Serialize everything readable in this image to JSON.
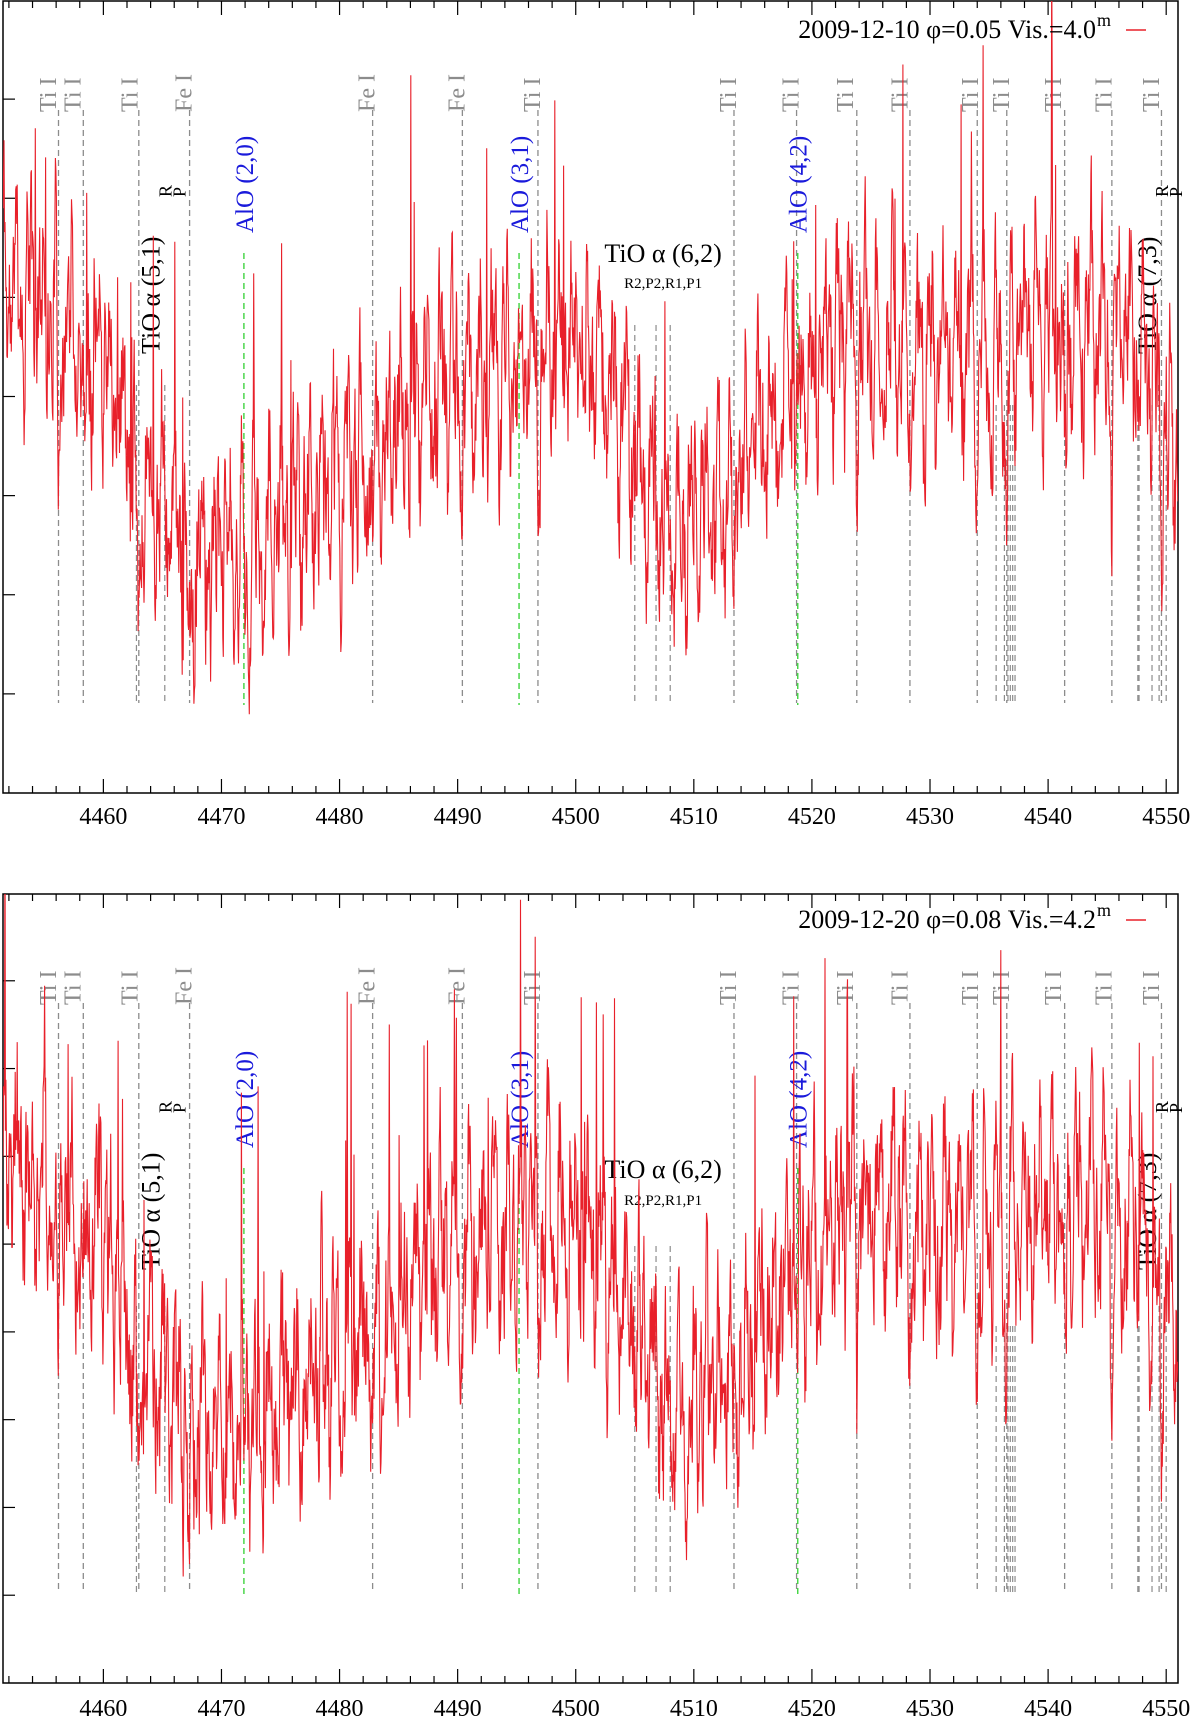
{
  "chart_data": [
    {
      "type": "line",
      "title": "",
      "xlabel": "",
      "ylabel": "",
      "xlim": [
        4451.5,
        4551
      ],
      "xticks": [
        4460,
        4470,
        4480,
        4490,
        4500,
        4510,
        4520,
        4530,
        4540,
        4550
      ],
      "xtick_labels": [
        "4460",
        "4470",
        "4480",
        "4490",
        "4500",
        "4510",
        "4520",
        "4530",
        "4540",
        "4550"
      ],
      "ylim": [
        0,
        8
      ],
      "y_tick_count": 7,
      "y_tick_labels": [],
      "grid": false,
      "legend": {
        "position": "top-right",
        "label": "2009-12-10 φ=0.05 Vis.=4.0",
        "sup": "m"
      },
      "series": [
        {
          "name": "2009-12-10 φ=0.05 Vis.=4.0m",
          "color": "#e8202a",
          "seed": 11,
          "amplitude_scale": 1.0,
          "continuum_x": [
            4451.5,
            4456,
            4460,
            4463,
            4467,
            4472,
            4476,
            4482,
            4488,
            4494,
            4498,
            4502,
            4505,
            4508,
            4511,
            4515,
            4519,
            4524,
            4530,
            4536,
            4542,
            4547,
            4551
          ],
          "continuum_y": [
            5.2,
            4.9,
            4.4,
            3.2,
            2.5,
            2.35,
            2.75,
            3.4,
            4.1,
            4.3,
            4.6,
            4.3,
            3.5,
            2.6,
            2.9,
            3.4,
            4.2,
            4.7,
            4.4,
            4.5,
            4.8,
            4.6,
            3.3
          ]
        }
      ]
    },
    {
      "type": "line",
      "title": "",
      "xlabel": "",
      "ylabel": "",
      "xlim": [
        4451.5,
        4551
      ],
      "xticks": [
        4460,
        4470,
        4480,
        4490,
        4500,
        4510,
        4520,
        4530,
        4540,
        4550
      ],
      "xtick_labels": [
        "4460",
        "4470",
        "4480",
        "4490",
        "4500",
        "4510",
        "4520",
        "4530",
        "4540",
        "4550"
      ],
      "ylim": [
        0,
        8
      ],
      "y_tick_count": 8,
      "y_tick_labels": [],
      "grid": false,
      "legend": {
        "position": "top-right",
        "label": "2009-12-20 φ=0.08 Vis.=4.2",
        "sup": "m"
      },
      "series": [
        {
          "name": "2009-12-20 φ=0.08 Vis.=4.2m",
          "color": "#e8202a",
          "seed": 23,
          "amplitude_scale": 1.05,
          "continuum_x": [
            4451.5,
            4456,
            4460,
            4463,
            4467,
            4472,
            4476,
            4482,
            4488,
            4494,
            4498,
            4502,
            4505,
            4508,
            4511,
            4515,
            4519,
            4524,
            4530,
            4536,
            4542,
            4547,
            4551
          ],
          "continuum_y": [
            5.3,
            5.0,
            4.5,
            3.3,
            2.6,
            2.5,
            2.9,
            3.6,
            4.3,
            4.6,
            4.8,
            4.4,
            3.6,
            2.7,
            3.0,
            3.5,
            4.3,
            4.9,
            4.6,
            4.6,
            4.9,
            4.7,
            3.4
          ]
        }
      ]
    }
  ],
  "identifications": {
    "atomic_lines": [
      {
        "label": "Ti I",
        "x": 4455.3,
        "drop_x": 4456.2
      },
      {
        "label": "Ti I",
        "x": 4457.4,
        "drop_x": 4458.3
      },
      {
        "label": "Ti I",
        "x": 4462.2,
        "drop_x": 4463.0
      },
      {
        "label": "Fe I",
        "x": 4466.8,
        "drop_x": 4467.3
      },
      {
        "label": "Fe I",
        "x": 4482.3,
        "drop_x": 4482.8
      },
      {
        "label": "Fe I",
        "x": 4489.9,
        "drop_x": 4490.4
      },
      {
        "label": "Ti I",
        "x": 4496.3,
        "drop_x": 4496.8
      },
      {
        "label": "Ti I",
        "x": 4512.9,
        "drop_x": 4513.4
      },
      {
        "label": "Ti I",
        "x": 4518.2,
        "drop_x": 4518.7
      },
      {
        "label": "Ti I",
        "x": 4522.8,
        "drop_x": 4523.8
      },
      {
        "label": "Ti I",
        "x": 4527.4,
        "drop_x": 4528.3
      },
      {
        "label": "Ti I",
        "x": 4533.4,
        "drop_x": 4534.0
      },
      {
        "label": "Ti I",
        "x": 4536.0,
        "drop_x": 4536.5
      },
      {
        "label": "Ti I",
        "x": 4540.4,
        "drop_x": 4541.4
      },
      {
        "label": "Ti I",
        "x": 4544.7,
        "drop_x": 4545.4
      },
      {
        "label": "Ti I",
        "x": 4548.7,
        "drop_x": 4549.6
      }
    ],
    "extra_dashes": [
      4535.6,
      4536.3,
      4536.6,
      4536.8,
      4537.0,
      4537.2,
      4547.7,
      4548.8,
      4550.0
    ],
    "alo_bands": [
      {
        "label": "AlO (2,0)",
        "x": 4471.9
      },
      {
        "label": "AlO (3,1)",
        "x": 4495.2
      },
      {
        "label": "AlO (4,2)",
        "x": 4518.8
      }
    ],
    "tio_bands": [
      {
        "label": "TiO α (5,1)",
        "branches": [
          "R",
          "P"
        ],
        "x_label": 4465.0,
        "heads": [
          4462.8,
          4465.2
        ]
      },
      {
        "label": "TiO α (7,3)",
        "branches": [
          "R",
          "P"
        ],
        "x_label": 4549.4,
        "heads": [
          4547.6,
          4549.4
        ]
      }
    ],
    "tio_62": {
      "label": "TiO α (6,2)",
      "sub": "R2,P2,R1,P1",
      "heads": [
        4505.0,
        4506.8,
        4508.0
      ]
    }
  },
  "colors": {
    "spectrum": "#e8202a",
    "atomic": "#8c8c8c",
    "alo": "#1a1adb",
    "alo_line": "#3fd43f",
    "axis": "#000000"
  }
}
